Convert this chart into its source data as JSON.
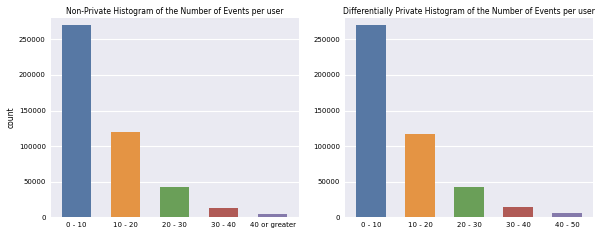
{
  "left_title": "Non-Private Histogram of the Number of Events per user",
  "right_title": "Differentially Private Histogram of the Number of Events per user",
  "ylabel": "count",
  "left_categories": [
    "0 - 10",
    "10 - 20",
    "20 - 30",
    "30 - 40",
    "40 or greater"
  ],
  "right_categories": [
    "0 - 10",
    "10 - 20",
    "20 - 30",
    "30 - 40",
    "40 - 50"
  ],
  "left_values": [
    270000,
    120000,
    43000,
    13000,
    5000
  ],
  "right_values": [
    270000,
    117000,
    43000,
    15000,
    6000
  ],
  "bar_colors": [
    "#5778a4",
    "#e49444",
    "#6a9f58",
    "#b05a56",
    "#857aab"
  ],
  "bg_color": "#eaeaf2",
  "fig_facecolor": "#ffffff",
  "title_fontsize": 5.5,
  "ylabel_fontsize": 5.5,
  "tick_fontsize": 5.0,
  "ylim": [
    0,
    280000
  ],
  "yticks": [
    0,
    50000,
    100000,
    150000,
    200000,
    250000
  ]
}
